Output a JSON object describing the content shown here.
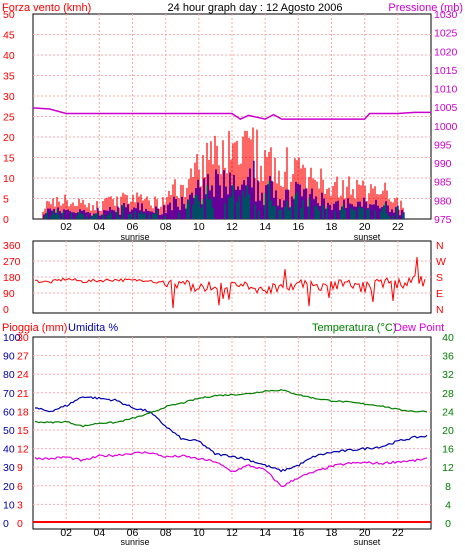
{
  "header": {
    "title": "24 hour graph day : 12 Agosto 2006",
    "left_label": "Forza vento (kmh)",
    "right_label": "Pressione (mb)"
  },
  "wind_panel": {
    "speed_ticks": [
      "0",
      "5",
      "10",
      "15",
      "20",
      "25",
      "30",
      "35",
      "40",
      "45",
      "50"
    ],
    "pressure_ticks": [
      "975",
      "980",
      "985",
      "990",
      "995",
      "1000",
      "1005",
      "1010",
      "1015",
      "1020",
      "1025",
      "1030"
    ],
    "hour_ticks": [
      "02",
      "04",
      "06",
      "08",
      "10",
      "12",
      "14",
      "16",
      "18",
      "20",
      "22"
    ],
    "sunrise_label": "sunrise",
    "sunset_label": "sunset"
  },
  "direction_panel": {
    "degree_ticks": [
      "0",
      "90",
      "180",
      "270",
      "360"
    ],
    "compass_ticks": [
      "N",
      "W",
      "S",
      "E",
      "N"
    ]
  },
  "weather_panel": {
    "rain_label": "Pioggia (mm)",
    "humidity_label": "Umidita %",
    "temp_label": "Temperatura (°C)",
    "dew_label": "Dew Point",
    "humidity_ticks": [
      "0",
      "10",
      "20",
      "30",
      "40",
      "50",
      "60",
      "70",
      "80",
      "90",
      "100"
    ],
    "rain_ticks": [
      "0",
      "3",
      "6",
      "9",
      "12",
      "15",
      "18",
      "21",
      "24",
      "27",
      "30"
    ],
    "temp_ticks": [
      "0",
      "4",
      "8",
      "12",
      "16",
      "20",
      "24",
      "28",
      "32",
      "36",
      "40"
    ]
  },
  "colors": {
    "wind_gust": "#ff0000",
    "wind_avg": "#0000ff",
    "wind_low": "#008000",
    "pressure": "#cc00cc",
    "direction": "#ff0000",
    "humidity": "#0000aa",
    "temperature": "#008000",
    "dew_point": "#dd00dd",
    "rain": "#ff0000",
    "grid": "#ffaaaa"
  },
  "chart_data": [
    {
      "type": "bar",
      "x_unit": "hour",
      "xlim": [
        0,
        24
      ],
      "ylim": [
        0,
        50
      ],
      "y2lim": [
        975,
        1030
      ],
      "series": [
        {
          "name": "Forza vento (kmh)",
          "values_hourly": [
            3,
            5,
            4,
            3,
            4,
            5,
            5,
            4,
            7,
            11,
            14,
            17,
            18,
            16,
            15,
            12,
            10,
            9,
            8,
            7,
            8,
            6,
            2,
            0
          ]
        },
        {
          "name": "Pressione (mb)",
          "points": [
            [
              0,
              1004.8
            ],
            [
              1,
              1004.5
            ],
            [
              2,
              1003.3
            ],
            [
              6,
              1003.3
            ],
            [
              12,
              1003.3
            ],
            [
              12.5,
              1001.8
            ],
            [
              13,
              1002.8
            ],
            [
              14,
              1001.8
            ],
            [
              14.5,
              1003.0
            ],
            [
              15,
              1001.8
            ],
            [
              16,
              1001.8
            ],
            [
              20,
              1001.8
            ],
            [
              20.3,
              1003.3
            ],
            [
              22,
              1003.3
            ],
            [
              23,
              1003.6
            ],
            [
              24,
              1003.6
            ]
          ]
        }
      ]
    },
    {
      "type": "line",
      "x_unit": "hour",
      "xlim": [
        0,
        24
      ],
      "ylim": [
        0,
        360
      ],
      "series": [
        {
          "name": "direction",
          "points": [
            [
              0,
              160
            ],
            [
              1,
              150
            ],
            [
              2,
              170
            ],
            [
              3,
              155
            ],
            [
              4,
              160
            ],
            [
              5,
              165
            ],
            [
              6,
              160
            ],
            [
              7,
              165
            ],
            [
              8,
              130
            ],
            [
              9,
              140
            ],
            [
              10,
              120
            ],
            [
              11,
              130
            ],
            [
              12,
              140
            ],
            [
              13,
              120
            ],
            [
              14,
              110
            ],
            [
              15,
              130
            ],
            [
              16,
              140
            ],
            [
              17,
              130
            ],
            [
              18,
              135
            ],
            [
              19,
              140
            ],
            [
              20,
              120
            ],
            [
              21,
              150
            ],
            [
              22,
              140
            ],
            [
              23,
              160
            ],
            [
              24,
              150
            ]
          ]
        }
      ]
    },
    {
      "type": "line",
      "x_unit": "hour",
      "xlim": [
        0,
        24
      ],
      "series": [
        {
          "name": "Umidita %",
          "ylim": [
            0,
            100
          ],
          "points": [
            [
              0,
              62
            ],
            [
              1,
              60
            ],
            [
              2,
              63
            ],
            [
              3,
              68
            ],
            [
              4,
              67
            ],
            [
              5,
              66
            ],
            [
              6,
              62
            ],
            [
              7,
              60
            ],
            [
              8,
              52
            ],
            [
              9,
              45
            ],
            [
              10,
              44
            ],
            [
              11,
              37
            ],
            [
              12,
              36
            ],
            [
              13,
              34
            ],
            [
              14,
              31
            ],
            [
              15,
              28
            ],
            [
              16,
              31
            ],
            [
              17,
              36
            ],
            [
              18,
              38
            ],
            [
              19,
              39
            ],
            [
              20,
              40
            ],
            [
              21,
              41
            ],
            [
              22,
              44
            ],
            [
              23,
              46
            ],
            [
              24,
              47
            ]
          ]
        },
        {
          "name": "Temperatura (°C)",
          "ylim": [
            0,
            40
          ],
          "points": [
            [
              0,
              21.8
            ],
            [
              1,
              21.6
            ],
            [
              2,
              21.8
            ],
            [
              3,
              20.8
            ],
            [
              4,
              21.5
            ],
            [
              5,
              21.6
            ],
            [
              6,
              22.5
            ],
            [
              7,
              23.5
            ],
            [
              8,
              25.0
            ],
            [
              9,
              25.8
            ],
            [
              10,
              26.8
            ],
            [
              11,
              27.4
            ],
            [
              12,
              27.6
            ],
            [
              13,
              27.8
            ],
            [
              14,
              28.4
            ],
            [
              15,
              28.6
            ],
            [
              16,
              27.6
            ],
            [
              17,
              26.8
            ],
            [
              18,
              26.3
            ],
            [
              19,
              26.0
            ],
            [
              20,
              25.6
            ],
            [
              21,
              25.2
            ],
            [
              22,
              24.4
            ],
            [
              23,
              24.0
            ],
            [
              24,
              24.0
            ]
          ]
        },
        {
          "name": "Dew Point",
          "ylim": [
            0,
            40
          ],
          "points": [
            [
              0,
              14
            ],
            [
              1,
              13.8
            ],
            [
              2,
              14.2
            ],
            [
              3,
              13.4
            ],
            [
              4,
              14.4
            ],
            [
              5,
              14.6
            ],
            [
              6,
              15.0
            ],
            [
              7,
              15.2
            ],
            [
              8,
              14.2
            ],
            [
              9,
              14.4
            ],
            [
              10,
              13.8
            ],
            [
              11,
              13.2
            ],
            [
              12,
              11.0
            ],
            [
              13,
              12.4
            ],
            [
              14,
              11.4
            ],
            [
              15,
              7.8
            ],
            [
              16,
              9.8
            ],
            [
              17,
              11.0
            ],
            [
              18,
              12.2
            ],
            [
              19,
              12.8
            ],
            [
              20,
              13.0
            ],
            [
              21,
              12.8
            ],
            [
              22,
              13.2
            ],
            [
              23,
              13.4
            ],
            [
              24,
              14.0
            ]
          ]
        },
        {
          "name": "Pioggia (mm)",
          "ylim": [
            0,
            30
          ],
          "points": [
            [
              0,
              0
            ],
            [
              24,
              0
            ]
          ]
        }
      ]
    }
  ]
}
